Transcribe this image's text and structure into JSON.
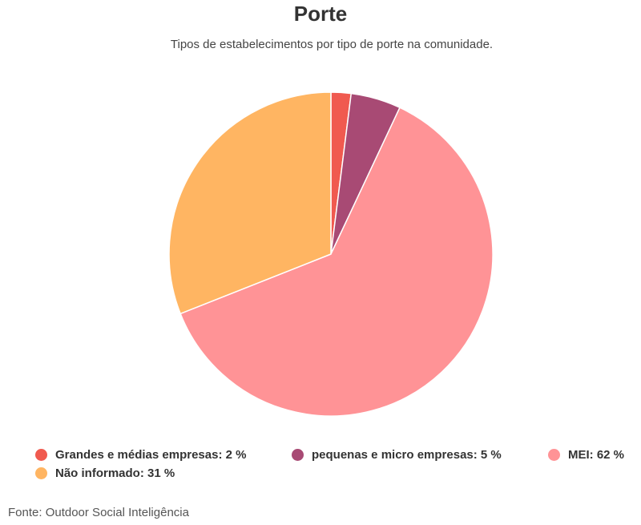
{
  "chart_data": {
    "type": "pie",
    "title": "Porte",
    "subtitle": "Tipos de estabelecimentos por tipo de porte na comunidade.",
    "slices": [
      {
        "label": "Grandes e médias empresas",
        "value": 2,
        "color": "#f05a4f",
        "legend": "Grandes e médias empresas: 2 %"
      },
      {
        "label": "pequenas e micro empresas",
        "value": 5,
        "color": "#a84a74",
        "legend": "pequenas e micro empresas: 5 %"
      },
      {
        "label": "MEI",
        "value": 62,
        "color": "#ff9396",
        "legend": "MEI: 62 %"
      },
      {
        "label": "Não informado",
        "value": 31,
        "color": "#ffb562",
        "legend": "Não informado: 31 %"
      }
    ],
    "legend_position": "bottom"
  },
  "source": "Fonte: Outdoor Social Inteligência"
}
